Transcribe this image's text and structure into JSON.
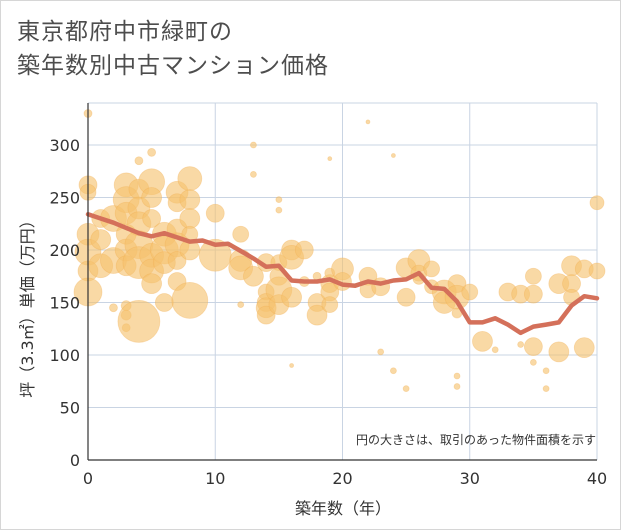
{
  "title_line1": "東京都府中市緑町の",
  "title_line2": "築年数別中古マンション価格",
  "chart_data": {
    "type": "scatter",
    "title": "東京都府中市緑町の 築年数別中古マンション価格",
    "xlabel": "築年数（年）",
    "ylabel": "坪（3.3㎡）単価（万円）",
    "xlim": [
      0,
      40
    ],
    "ylim": [
      0,
      340
    ],
    "xticks": [
      0,
      10,
      20,
      30,
      40
    ],
    "yticks": [
      0,
      50,
      100,
      150,
      200,
      250,
      300
    ],
    "grid": true,
    "annotation": "円の大きさは、取引のあった物件面積を示す",
    "colors": {
      "bubble": "#f6c16e",
      "line": "#d4705a",
      "grid": "#c9d4e3",
      "axis": "#333333"
    },
    "series": [
      {
        "type": "bubble",
        "points": [
          {
            "x": 0,
            "y": 330,
            "s": 4
          },
          {
            "x": 0,
            "y": 262,
            "s": 9
          },
          {
            "x": 0,
            "y": 255,
            "s": 8
          },
          {
            "x": 0,
            "y": 215,
            "s": 11
          },
          {
            "x": 0,
            "y": 198,
            "s": 13
          },
          {
            "x": 0,
            "y": 180,
            "s": 10
          },
          {
            "x": 0,
            "y": 160,
            "s": 14
          },
          {
            "x": 1,
            "y": 230,
            "s": 9
          },
          {
            "x": 1,
            "y": 210,
            "s": 10
          },
          {
            "x": 1,
            "y": 185,
            "s": 12
          },
          {
            "x": 2,
            "y": 230,
            "s": 13
          },
          {
            "x": 2,
            "y": 190,
            "s": 13
          },
          {
            "x": 2,
            "y": 145,
            "s": 4
          },
          {
            "x": 3,
            "y": 262,
            "s": 12
          },
          {
            "x": 3,
            "y": 248,
            "s": 13
          },
          {
            "x": 3,
            "y": 235,
            "s": 11
          },
          {
            "x": 3,
            "y": 215,
            "s": 10
          },
          {
            "x": 3,
            "y": 200,
            "s": 11
          },
          {
            "x": 3,
            "y": 185,
            "s": 10
          },
          {
            "x": 3,
            "y": 147,
            "s": 5
          },
          {
            "x": 3,
            "y": 138,
            "s": 5
          },
          {
            "x": 3,
            "y": 126,
            "s": 4
          },
          {
            "x": 4,
            "y": 285,
            "s": 4
          },
          {
            "x": 4,
            "y": 258,
            "s": 10
          },
          {
            "x": 4,
            "y": 240,
            "s": 11
          },
          {
            "x": 4,
            "y": 225,
            "s": 12
          },
          {
            "x": 4,
            "y": 205,
            "s": 14
          },
          {
            "x": 4,
            "y": 188,
            "s": 16
          },
          {
            "x": 4,
            "y": 132,
            "s": 21
          },
          {
            "x": 5,
            "y": 293,
            "s": 4
          },
          {
            "x": 5,
            "y": 265,
            "s": 13
          },
          {
            "x": 5,
            "y": 250,
            "s": 10
          },
          {
            "x": 5,
            "y": 230,
            "s": 9
          },
          {
            "x": 5,
            "y": 195,
            "s": 12
          },
          {
            "x": 5,
            "y": 180,
            "s": 12
          },
          {
            "x": 5,
            "y": 168,
            "s": 10
          },
          {
            "x": 6,
            "y": 215,
            "s": 12
          },
          {
            "x": 6,
            "y": 200,
            "s": 14
          },
          {
            "x": 6,
            "y": 188,
            "s": 11
          },
          {
            "x": 6,
            "y": 150,
            "s": 9
          },
          {
            "x": 7,
            "y": 255,
            "s": 11
          },
          {
            "x": 7,
            "y": 245,
            "s": 9
          },
          {
            "x": 7,
            "y": 220,
            "s": 10
          },
          {
            "x": 7,
            "y": 205,
            "s": 12
          },
          {
            "x": 7,
            "y": 190,
            "s": 9
          },
          {
            "x": 7,
            "y": 170,
            "s": 9
          },
          {
            "x": 8,
            "y": 268,
            "s": 12
          },
          {
            "x": 8,
            "y": 248,
            "s": 10
          },
          {
            "x": 8,
            "y": 230,
            "s": 10
          },
          {
            "x": 8,
            "y": 215,
            "s": 8
          },
          {
            "x": 8,
            "y": 200,
            "s": 10
          },
          {
            "x": 8,
            "y": 152,
            "s": 18
          },
          {
            "x": 10,
            "y": 235,
            "s": 9
          },
          {
            "x": 10,
            "y": 195,
            "s": 16
          },
          {
            "x": 12,
            "y": 215,
            "s": 8
          },
          {
            "x": 12,
            "y": 190,
            "s": 11
          },
          {
            "x": 12,
            "y": 183,
            "s": 12
          },
          {
            "x": 12,
            "y": 148,
            "s": 3
          },
          {
            "x": 13,
            "y": 300,
            "s": 3
          },
          {
            "x": 13,
            "y": 272,
            "s": 3
          },
          {
            "x": 13,
            "y": 175,
            "s": 10
          },
          {
            "x": 14,
            "y": 188,
            "s": 9
          },
          {
            "x": 14,
            "y": 160,
            "s": 8
          },
          {
            "x": 14,
            "y": 150,
            "s": 9
          },
          {
            "x": 14,
            "y": 145,
            "s": 10
          },
          {
            "x": 14,
            "y": 138,
            "s": 9
          },
          {
            "x": 15,
            "y": 248,
            "s": 3
          },
          {
            "x": 15,
            "y": 238,
            "s": 3
          },
          {
            "x": 15,
            "y": 188,
            "s": 8
          },
          {
            "x": 15,
            "y": 175,
            "s": 9
          },
          {
            "x": 15,
            "y": 162,
            "s": 13
          },
          {
            "x": 15,
            "y": 148,
            "s": 10
          },
          {
            "x": 16,
            "y": 200,
            "s": 10
          },
          {
            "x": 16,
            "y": 193,
            "s": 12
          },
          {
            "x": 16,
            "y": 155,
            "s": 10
          },
          {
            "x": 16,
            "y": 90,
            "s": 2
          },
          {
            "x": 17,
            "y": 200,
            "s": 9
          },
          {
            "x": 17,
            "y": 170,
            "s": 5
          },
          {
            "x": 18,
            "y": 150,
            "s": 9
          },
          {
            "x": 18,
            "y": 138,
            "s": 10
          },
          {
            "x": 18,
            "y": 175,
            "s": 4
          },
          {
            "x": 19,
            "y": 287,
            "s": 2
          },
          {
            "x": 19,
            "y": 168,
            "s": 9
          },
          {
            "x": 19,
            "y": 160,
            "s": 9
          },
          {
            "x": 19,
            "y": 148,
            "s": 8
          },
          {
            "x": 19,
            "y": 178,
            "s": 5
          },
          {
            "x": 20,
            "y": 182,
            "s": 11
          },
          {
            "x": 20,
            "y": 170,
            "s": 9
          },
          {
            "x": 22,
            "y": 322,
            "s": 2
          },
          {
            "x": 22,
            "y": 175,
            "s": 9
          },
          {
            "x": 22,
            "y": 162,
            "s": 8
          },
          {
            "x": 23,
            "y": 165,
            "s": 9
          },
          {
            "x": 23,
            "y": 103,
            "s": 3
          },
          {
            "x": 24,
            "y": 290,
            "s": 2
          },
          {
            "x": 24,
            "y": 85,
            "s": 3
          },
          {
            "x": 25,
            "y": 183,
            "s": 10
          },
          {
            "x": 25,
            "y": 155,
            "s": 9
          },
          {
            "x": 25,
            "y": 68,
            "s": 3
          },
          {
            "x": 26,
            "y": 190,
            "s": 11
          },
          {
            "x": 26,
            "y": 178,
            "s": 8
          },
          {
            "x": 26,
            "y": 173,
            "s": 6
          },
          {
            "x": 27,
            "y": 182,
            "s": 8
          },
          {
            "x": 27,
            "y": 165,
            "s": 7
          },
          {
            "x": 28,
            "y": 160,
            "s": 12
          },
          {
            "x": 28,
            "y": 150,
            "s": 11
          },
          {
            "x": 29,
            "y": 168,
            "s": 9
          },
          {
            "x": 29,
            "y": 155,
            "s": 12
          },
          {
            "x": 29,
            "y": 140,
            "s": 5
          },
          {
            "x": 29,
            "y": 80,
            "s": 3
          },
          {
            "x": 29,
            "y": 70,
            "s": 3
          },
          {
            "x": 30,
            "y": 160,
            "s": 8
          },
          {
            "x": 31,
            "y": 113,
            "s": 10
          },
          {
            "x": 32,
            "y": 105,
            "s": 3
          },
          {
            "x": 33,
            "y": 160,
            "s": 9
          },
          {
            "x": 34,
            "y": 158,
            "s": 9
          },
          {
            "x": 34,
            "y": 110,
            "s": 3
          },
          {
            "x": 35,
            "y": 175,
            "s": 8
          },
          {
            "x": 35,
            "y": 158,
            "s": 9
          },
          {
            "x": 35,
            "y": 108,
            "s": 9
          },
          {
            "x": 35,
            "y": 93,
            "s": 3
          },
          {
            "x": 36,
            "y": 85,
            "s": 3
          },
          {
            "x": 36,
            "y": 68,
            "s": 3
          },
          {
            "x": 37,
            "y": 168,
            "s": 10
          },
          {
            "x": 37,
            "y": 103,
            "s": 10
          },
          {
            "x": 38,
            "y": 185,
            "s": 10
          },
          {
            "x": 38,
            "y": 168,
            "s": 9
          },
          {
            "x": 38,
            "y": 155,
            "s": 8
          },
          {
            "x": 39,
            "y": 182,
            "s": 9
          },
          {
            "x": 39,
            "y": 107,
            "s": 10
          },
          {
            "x": 40,
            "y": 245,
            "s": 7
          },
          {
            "x": 40,
            "y": 180,
            "s": 8
          }
        ]
      },
      {
        "type": "line",
        "x": [
          0,
          1,
          2,
          3,
          4,
          5,
          6,
          7,
          8,
          9,
          10,
          11,
          12,
          13,
          14,
          15,
          16,
          17,
          18,
          19,
          20,
          21,
          22,
          23,
          24,
          25,
          26,
          27,
          28,
          29,
          30,
          31,
          32,
          33,
          34,
          35,
          36,
          37,
          38,
          39,
          40
        ],
        "y": [
          234,
          230,
          226,
          221,
          216,
          213,
          216,
          212,
          208,
          209,
          205,
          206,
          199,
          192,
          184,
          185,
          171,
          170,
          170,
          172,
          167,
          166,
          170,
          168,
          171,
          172,
          178,
          164,
          163,
          151,
          131,
          131,
          135,
          129,
          121,
          127,
          129,
          131,
          147,
          156,
          154
        ]
      }
    ]
  }
}
